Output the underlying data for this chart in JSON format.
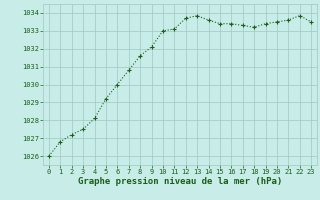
{
  "x": [
    0,
    1,
    2,
    3,
    4,
    5,
    6,
    7,
    8,
    9,
    10,
    11,
    12,
    13,
    14,
    15,
    16,
    17,
    18,
    19,
    20,
    21,
    22,
    23
  ],
  "y": [
    1026.0,
    1026.8,
    1027.2,
    1027.5,
    1028.1,
    1029.2,
    1030.0,
    1030.8,
    1031.6,
    1032.1,
    1033.0,
    1033.1,
    1033.7,
    1033.85,
    1033.6,
    1033.4,
    1033.4,
    1033.3,
    1033.2,
    1033.4,
    1033.5,
    1033.6,
    1033.85,
    1033.5
  ],
  "line_color": "#1a5e1a",
  "marker": "+",
  "marker_size": 3,
  "marker_color": "#1a5e1a",
  "bg_color": "#c8ece8",
  "grid_color": "#a0c8c4",
  "tick_label_color": "#1a5e1a",
  "xlabel": "Graphe pression niveau de la mer (hPa)",
  "xlabel_color": "#1a5e1a",
  "xlabel_fontsize": 6.5,
  "ylim_min": 1025.5,
  "ylim_max": 1034.5,
  "xlim_min": -0.5,
  "xlim_max": 23.5,
  "yticks": [
    1026,
    1027,
    1028,
    1029,
    1030,
    1031,
    1032,
    1033,
    1034
  ],
  "xticks": [
    0,
    1,
    2,
    3,
    4,
    5,
    6,
    7,
    8,
    9,
    10,
    11,
    12,
    13,
    14,
    15,
    16,
    17,
    18,
    19,
    20,
    21,
    22,
    23
  ],
  "tick_fontsize": 5.0,
  "linewidth": 0.8
}
